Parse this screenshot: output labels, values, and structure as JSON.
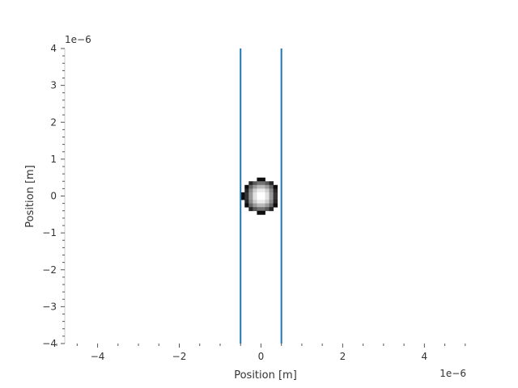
{
  "chart_data": {
    "type": "heatmap",
    "title": "",
    "xlabel": "Position [m]",
    "ylabel": "Position [m]",
    "x_offset_label": "1e−6",
    "y_offset_label": "1e−6",
    "xlim": [
      -5.2,
      5.4
    ],
    "ylim": [
      -4,
      4
    ],
    "x_ticks": [
      {
        "value": -4,
        "label": "−4"
      },
      {
        "value": -2,
        "label": "−2"
      },
      {
        "value": 0,
        "label": "0"
      },
      {
        "value": 2,
        "label": "2"
      },
      {
        "value": 4,
        "label": "4"
      }
    ],
    "y_ticks": [
      {
        "value": 4,
        "label": "4"
      },
      {
        "value": 3,
        "label": "3"
      },
      {
        "value": 2,
        "label": "2"
      },
      {
        "value": 1,
        "label": "1"
      },
      {
        "value": 0,
        "label": "0"
      },
      {
        "value": -1,
        "label": "−1"
      },
      {
        "value": -2,
        "label": "−2"
      },
      {
        "value": -3,
        "label": "−3"
      },
      {
        "value": -4,
        "label": "−4"
      }
    ],
    "vertical_lines": [
      {
        "x": -0.5,
        "color": "#1f77b4"
      },
      {
        "x": 0.5,
        "color": "#1f77b4"
      }
    ],
    "spot": {
      "center": [
        0,
        0
      ],
      "cell_size": 0.1,
      "cells": [
        [
          -0.05,
          0.45,
          0.05
        ],
        [
          0.05,
          0.45,
          0.05
        ],
        [
          -0.25,
          0.35,
          0.15
        ],
        [
          -0.15,
          0.35,
          0.35
        ],
        [
          -0.05,
          0.35,
          0.45
        ],
        [
          0.05,
          0.35,
          0.45
        ],
        [
          0.15,
          0.35,
          0.35
        ],
        [
          0.25,
          0.35,
          0.15
        ],
        [
          -0.35,
          0.25,
          0.05
        ],
        [
          -0.25,
          0.25,
          0.4
        ],
        [
          -0.15,
          0.25,
          0.6
        ],
        [
          -0.05,
          0.25,
          0.72
        ],
        [
          0.05,
          0.25,
          0.72
        ],
        [
          0.15,
          0.25,
          0.6
        ],
        [
          0.25,
          0.25,
          0.4
        ],
        [
          0.35,
          0.25,
          0.05
        ],
        [
          -0.35,
          0.15,
          0.15
        ],
        [
          -0.25,
          0.15,
          0.55
        ],
        [
          -0.15,
          0.15,
          0.8
        ],
        [
          -0.05,
          0.15,
          0.92
        ],
        [
          0.05,
          0.15,
          0.92
        ],
        [
          0.15,
          0.15,
          0.8
        ],
        [
          0.25,
          0.15,
          0.55
        ],
        [
          0.35,
          0.15,
          0.15
        ],
        [
          -0.45,
          0.05,
          0.05
        ],
        [
          -0.35,
          0.05,
          0.2
        ],
        [
          -0.25,
          0.05,
          0.6
        ],
        [
          -0.15,
          0.05,
          0.88
        ],
        [
          -0.05,
          0.05,
          1.0
        ],
        [
          0.05,
          0.05,
          1.0
        ],
        [
          0.15,
          0.05,
          0.88
        ],
        [
          0.25,
          0.05,
          0.6
        ],
        [
          0.35,
          0.05,
          0.2
        ],
        [
          -0.45,
          -0.05,
          0.05
        ],
        [
          -0.35,
          -0.05,
          0.2
        ],
        [
          -0.25,
          -0.05,
          0.6
        ],
        [
          -0.15,
          -0.05,
          0.88
        ],
        [
          -0.05,
          -0.05,
          1.0
        ],
        [
          0.05,
          -0.05,
          1.0
        ],
        [
          0.15,
          -0.05,
          0.88
        ],
        [
          0.25,
          -0.05,
          0.6
        ],
        [
          0.35,
          -0.05,
          0.2
        ],
        [
          -0.35,
          -0.15,
          0.15
        ],
        [
          -0.25,
          -0.15,
          0.55
        ],
        [
          -0.15,
          -0.15,
          0.8
        ],
        [
          -0.05,
          -0.15,
          0.92
        ],
        [
          0.05,
          -0.15,
          0.92
        ],
        [
          0.15,
          -0.15,
          0.8
        ],
        [
          0.25,
          -0.15,
          0.55
        ],
        [
          0.35,
          -0.15,
          0.15
        ],
        [
          -0.35,
          -0.25,
          0.05
        ],
        [
          -0.25,
          -0.25,
          0.4
        ],
        [
          -0.15,
          -0.25,
          0.6
        ],
        [
          -0.05,
          -0.25,
          0.72
        ],
        [
          0.05,
          -0.25,
          0.72
        ],
        [
          0.15,
          -0.25,
          0.6
        ],
        [
          0.25,
          -0.25,
          0.4
        ],
        [
          0.35,
          -0.25,
          0.05
        ],
        [
          -0.25,
          -0.35,
          0.15
        ],
        [
          -0.15,
          -0.35,
          0.35
        ],
        [
          -0.05,
          -0.35,
          0.45
        ],
        [
          0.05,
          -0.35,
          0.45
        ],
        [
          0.15,
          -0.35,
          0.35
        ],
        [
          0.25,
          -0.35,
          0.15
        ],
        [
          -0.05,
          -0.45,
          0.05
        ],
        [
          0.05,
          -0.45,
          0.05
        ]
      ]
    },
    "grid": false,
    "legend": "none"
  }
}
